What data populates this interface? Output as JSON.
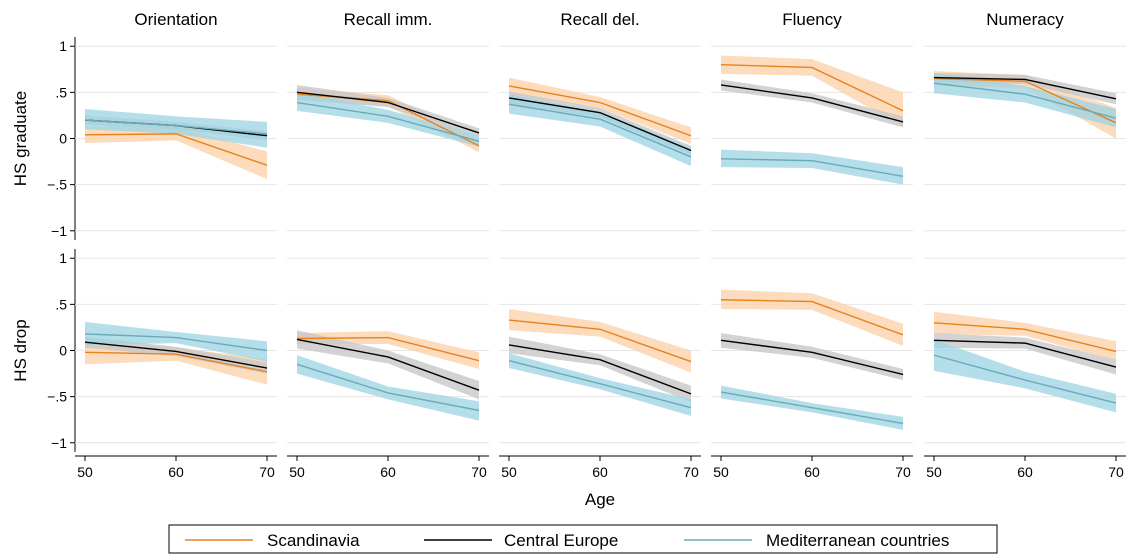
{
  "chart_data": {
    "type": "line",
    "panel_titles": [
      "Orientation",
      "Recall imm.",
      "Recall del.",
      "Fluency",
      "Numeracy"
    ],
    "row_labels": [
      "HS graduate",
      "HS drop"
    ],
    "xlabel": "Age",
    "x": [
      50,
      60,
      70
    ],
    "x_ticks": [
      "50",
      "60",
      "70"
    ],
    "ylim": [
      -1.1,
      1.1
    ],
    "y_ticks": [
      1,
      0.5,
      0,
      -0.5,
      -1
    ],
    "y_tick_labels": [
      "1",
      ".5",
      "0",
      "−.5",
      "−1"
    ],
    "grid": true,
    "legend_position": "bottom",
    "series": [
      {
        "name": "Scandinavia",
        "color": "#e8821e",
        "band_color": "#fbd2aa"
      },
      {
        "name": "Central Europe",
        "color": "#000000",
        "band_color": "#c6c6c6"
      },
      {
        "name": "Mediterranean countries",
        "color": "#6aaab6",
        "band_color": "#9fd5e3"
      }
    ],
    "rows": [
      {
        "label": "HS graduate",
        "panels": [
          {
            "title": "Orientation",
            "series": [
              {
                "name": "Scandinavia",
                "values": [
                  0.04,
                  0.05,
                  -0.29
                ],
                "lower": [
                  -0.05,
                  -0.02,
                  -0.44
                ],
                "upper": [
                  0.13,
                  0.12,
                  -0.14
                ]
              },
              {
                "name": "Central Europe",
                "values": [
                  0.2,
                  0.14,
                  0.03
                ],
                "lower": [
                  0.15,
                  0.1,
                  -0.02
                ],
                "upper": [
                  0.25,
                  0.18,
                  0.08
                ]
              },
              {
                "name": "Mediterranean countries",
                "values": [
                  0.2,
                  0.14,
                  0.05
                ],
                "lower": [
                  0.1,
                  0.05,
                  -0.1
                ],
                "upper": [
                  0.32,
                  0.24,
                  0.18
                ]
              }
            ]
          },
          {
            "title": "Recall imm.",
            "series": [
              {
                "name": "Scandinavia",
                "values": [
                  0.48,
                  0.41,
                  -0.08
                ],
                "lower": [
                  0.41,
                  0.35,
                  -0.15
                ],
                "upper": [
                  0.55,
                  0.47,
                  -0.01
                ]
              },
              {
                "name": "Central Europe",
                "values": [
                  0.5,
                  0.39,
                  0.06
                ],
                "lower": [
                  0.43,
                  0.34,
                  0.01
                ],
                "upper": [
                  0.58,
                  0.44,
                  0.11
                ]
              },
              {
                "name": "Mediterranean countries",
                "values": [
                  0.39,
                  0.24,
                  -0.03
                ],
                "lower": [
                  0.3,
                  0.17,
                  -0.09
                ],
                "upper": [
                  0.5,
                  0.31,
                  0.03
                ]
              }
            ]
          },
          {
            "title": "Recall del.",
            "series": [
              {
                "name": "Scandinavia",
                "values": [
                  0.57,
                  0.39,
                  0.03
                ],
                "lower": [
                  0.48,
                  0.33,
                  -0.06
                ],
                "upper": [
                  0.66,
                  0.45,
                  0.12
                ]
              },
              {
                "name": "Central Europe",
                "values": [
                  0.44,
                  0.28,
                  -0.13
                ],
                "lower": [
                  0.37,
                  0.23,
                  -0.18
                ],
                "upper": [
                  0.51,
                  0.33,
                  -0.08
                ]
              },
              {
                "name": "Mediterranean countries",
                "values": [
                  0.37,
                  0.21,
                  -0.2
                ],
                "lower": [
                  0.27,
                  0.13,
                  -0.3
                ],
                "upper": [
                  0.48,
                  0.29,
                  -0.1
                ]
              }
            ]
          },
          {
            "title": "Fluency",
            "series": [
              {
                "name": "Scandinavia",
                "values": [
                  0.8,
                  0.77,
                  0.3
                ],
                "lower": [
                  0.7,
                  0.68,
                  0.13
                ],
                "upper": [
                  0.9,
                  0.86,
                  0.5
                ]
              },
              {
                "name": "Central Europe",
                "values": [
                  0.58,
                  0.44,
                  0.18
                ],
                "lower": [
                  0.52,
                  0.39,
                  0.12
                ],
                "upper": [
                  0.64,
                  0.49,
                  0.24
                ]
              },
              {
                "name": "Mediterranean countries",
                "values": [
                  -0.22,
                  -0.24,
                  -0.41
                ],
                "lower": [
                  -0.31,
                  -0.32,
                  -0.5
                ],
                "upper": [
                  -0.12,
                  -0.16,
                  -0.31
                ]
              }
            ]
          },
          {
            "title": "Numeracy",
            "series": [
              {
                "name": "Scandinavia",
                "values": [
                  0.65,
                  0.62,
                  0.17
                ],
                "lower": [
                  0.57,
                  0.55,
                  0.0
                ],
                "upper": [
                  0.73,
                  0.69,
                  0.33
                ]
              },
              {
                "name": "Central Europe",
                "values": [
                  0.66,
                  0.64,
                  0.43
                ],
                "lower": [
                  0.61,
                  0.59,
                  0.37
                ],
                "upper": [
                  0.71,
                  0.69,
                  0.49
                ]
              },
              {
                "name": "Mediterranean countries",
                "values": [
                  0.6,
                  0.48,
                  0.22
                ],
                "lower": [
                  0.49,
                  0.39,
                  0.12
                ],
                "upper": [
                  0.71,
                  0.57,
                  0.32
                ]
              }
            ]
          }
        ]
      },
      {
        "label": "HS drop",
        "panels": [
          {
            "title": "Orientation",
            "series": [
              {
                "name": "Scandinavia",
                "values": [
                  -0.02,
                  -0.04,
                  -0.23
                ],
                "lower": [
                  -0.15,
                  -0.11,
                  -0.37
                ],
                "upper": [
                  0.11,
                  0.03,
                  -0.09
                ]
              },
              {
                "name": "Central Europe",
                "values": [
                  0.09,
                  -0.01,
                  -0.19
                ],
                "lower": [
                  0.03,
                  -0.06,
                  -0.25
                ],
                "upper": [
                  0.15,
                  0.04,
                  -0.13
                ]
              },
              {
                "name": "Mediterranean countries",
                "values": [
                  0.18,
                  0.14,
                  0.0
                ],
                "lower": [
                  0.06,
                  0.08,
                  -0.12
                ],
                "upper": [
                  0.31,
                  0.2,
                  0.1
                ]
              }
            ]
          },
          {
            "title": "Recall imm.",
            "series": [
              {
                "name": "Scandinavia",
                "values": [
                  0.13,
                  0.14,
                  -0.11
                ],
                "lower": [
                  0.07,
                  0.07,
                  -0.2
                ],
                "upper": [
                  0.19,
                  0.21,
                  -0.02
                ]
              },
              {
                "name": "Central Europe",
                "values": [
                  0.12,
                  -0.07,
                  -0.43
                ],
                "lower": [
                  0.02,
                  -0.14,
                  -0.53
                ],
                "upper": [
                  0.22,
                  0.0,
                  -0.33
                ]
              },
              {
                "name": "Mediterranean countries",
                "values": [
                  -0.15,
                  -0.46,
                  -0.65
                ],
                "lower": [
                  -0.25,
                  -0.53,
                  -0.76
                ],
                "upper": [
                  -0.05,
                  -0.39,
                  -0.55
                ]
              }
            ]
          },
          {
            "title": "Recall del.",
            "series": [
              {
                "name": "Scandinavia",
                "values": [
                  0.33,
                  0.23,
                  -0.12
                ],
                "lower": [
                  0.22,
                  0.15,
                  -0.24
                ],
                "upper": [
                  0.45,
                  0.31,
                  0.0
                ]
              },
              {
                "name": "Central Europe",
                "values": [
                  0.06,
                  -0.1,
                  -0.47
                ],
                "lower": [
                  -0.03,
                  -0.16,
                  -0.56
                ],
                "upper": [
                  0.15,
                  -0.04,
                  -0.38
                ]
              },
              {
                "name": "Mediterranean countries",
                "values": [
                  -0.11,
                  -0.36,
                  -0.62
                ],
                "lower": [
                  -0.19,
                  -0.42,
                  -0.71
                ],
                "upper": [
                  -0.03,
                  -0.3,
                  -0.53
                ]
              }
            ]
          },
          {
            "title": "Fluency",
            "series": [
              {
                "name": "Scandinavia",
                "values": [
                  0.55,
                  0.53,
                  0.17
                ],
                "lower": [
                  0.45,
                  0.44,
                  0.05
                ],
                "upper": [
                  0.66,
                  0.62,
                  0.29
                ]
              },
              {
                "name": "Central Europe",
                "values": [
                  0.11,
                  -0.02,
                  -0.26
                ],
                "lower": [
                  0.03,
                  -0.08,
                  -0.32
                ],
                "upper": [
                  0.19,
                  0.04,
                  -0.2
                ]
              },
              {
                "name": "Mediterranean countries",
                "values": [
                  -0.45,
                  -0.62,
                  -0.79
                ],
                "lower": [
                  -0.52,
                  -0.67,
                  -0.86
                ],
                "upper": [
                  -0.38,
                  -0.57,
                  -0.72
                ]
              }
            ]
          },
          {
            "title": "Numeracy",
            "series": [
              {
                "name": "Scandinavia",
                "values": [
                  0.3,
                  0.23,
                  -0.01
                ],
                "lower": [
                  0.18,
                  0.16,
                  -0.11
                ],
                "upper": [
                  0.42,
                  0.3,
                  0.1
                ]
              },
              {
                "name": "Central Europe",
                "values": [
                  0.11,
                  0.08,
                  -0.18
                ],
                "lower": [
                  0.03,
                  0.02,
                  -0.26
                ],
                "upper": [
                  0.19,
                  0.14,
                  -0.1
                ]
              },
              {
                "name": "Mediterranean countries",
                "values": [
                  -0.05,
                  -0.32,
                  -0.57
                ],
                "lower": [
                  -0.22,
                  -0.41,
                  -0.67
                ],
                "upper": [
                  0.12,
                  -0.23,
                  -0.47
                ]
              }
            ]
          }
        ]
      }
    ]
  }
}
